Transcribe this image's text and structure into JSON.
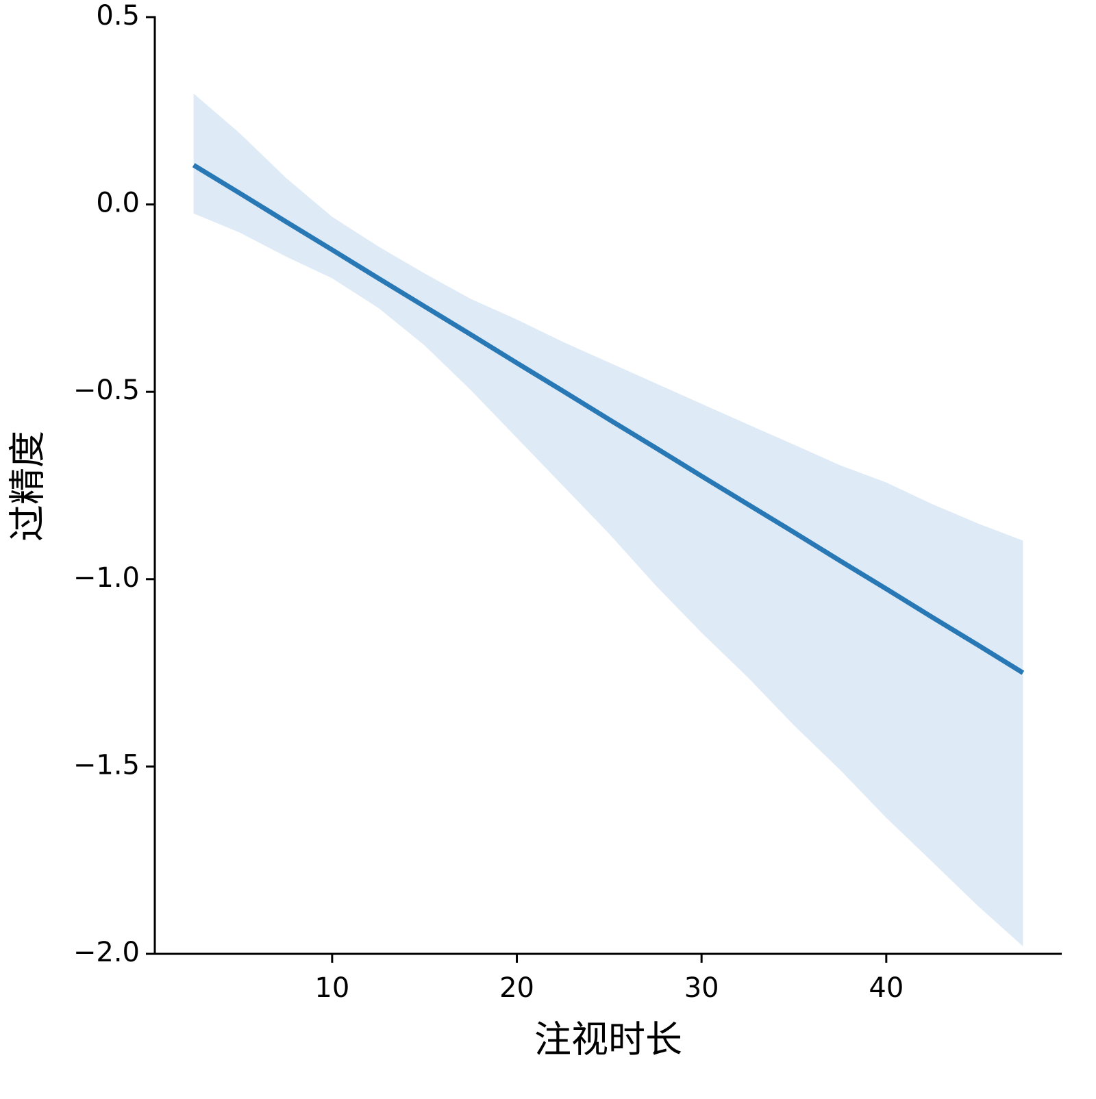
{
  "chart_data": {
    "type": "line",
    "xlabel": "注视时长",
    "ylabel": "过精度",
    "x": [
      2.5,
      5,
      7.5,
      10,
      12.5,
      15,
      17.5,
      20,
      22.5,
      25,
      27.5,
      30,
      32.5,
      35,
      37.5,
      40,
      42.5,
      45,
      47.4
    ],
    "series": [
      {
        "color": "#2878b5",
        "values": [
          0.105,
          0.03,
          -0.046,
          -0.121,
          -0.197,
          -0.272,
          -0.347,
          -0.423,
          -0.498,
          -0.574,
          -0.649,
          -0.725,
          -0.8,
          -0.875,
          -0.951,
          -1.026,
          -1.102,
          -1.177,
          -1.25
        ],
        "ci_upper": [
          0.296,
          0.19,
          0.071,
          -0.033,
          -0.112,
          -0.184,
          -0.252,
          -0.307,
          -0.367,
          -0.422,
          -0.477,
          -0.532,
          -0.587,
          -0.641,
          -0.696,
          -0.742,
          -0.8,
          -0.852,
          -0.897
        ],
        "ci_lower": [
          -0.024,
          -0.075,
          -0.139,
          -0.197,
          -0.276,
          -0.376,
          -0.495,
          -0.623,
          -0.751,
          -0.879,
          -1.016,
          -1.143,
          -1.262,
          -1.39,
          -1.509,
          -1.637,
          -1.755,
          -1.874,
          -1.98
        ],
        "ci_color": "#deeaf5"
      }
    ],
    "xlim": [
      0.4,
      49.5
    ],
    "ylim": [
      -2,
      0.5
    ],
    "xticks": [
      10,
      20,
      30,
      40
    ],
    "yticks": [
      {
        "value": -2,
        "label": "−2.0"
      },
      {
        "value": -1.5,
        "label": "−1.5"
      },
      {
        "value": -1,
        "label": "−1.0"
      },
      {
        "value": -0.5,
        "label": "−0.5"
      },
      {
        "value": 0,
        "label": "0.0"
      },
      0.5
    ],
    "grid": false
  }
}
